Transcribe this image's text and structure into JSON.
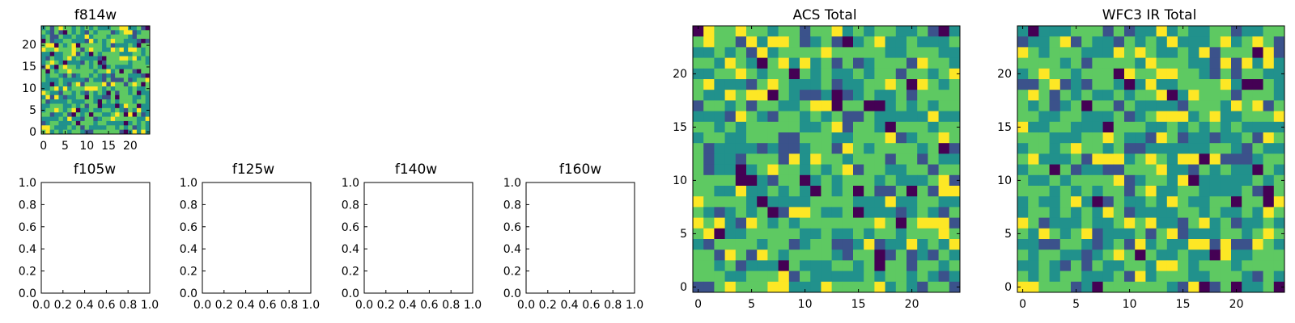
{
  "figure": {
    "background": "#ffffff"
  },
  "colormap": [
    "#440154",
    "#3b528b",
    "#21918c",
    "#5ec962",
    "#fde725"
  ],
  "chart_data": [
    {
      "type": "heatmap",
      "title": "f814w",
      "nx": 25,
      "ny": 25,
      "xlim": [
        -0.5,
        24.5
      ],
      "ylim": [
        -0.5,
        24.5
      ],
      "xticks": [
        0,
        5,
        10,
        15,
        20
      ],
      "yticks": [
        0,
        5,
        10,
        15,
        20
      ],
      "seed": 3,
      "grid": false
    },
    {
      "type": "empty",
      "title": "f105w",
      "xlim": [
        0,
        1
      ],
      "ylim": [
        0,
        1
      ],
      "xticks": [
        "0.0",
        "0.2",
        "0.4",
        "0.6",
        "0.8",
        "1.0"
      ],
      "yticks": [
        "0.0",
        "0.2",
        "0.4",
        "0.6",
        "0.8",
        "1.0"
      ]
    },
    {
      "type": "empty",
      "title": "f125w",
      "xlim": [
        0,
        1
      ],
      "ylim": [
        0,
        1
      ],
      "xticks": [
        "0.0",
        "0.2",
        "0.4",
        "0.6",
        "0.8",
        "1.0"
      ],
      "yticks": [
        "0.0",
        "0.2",
        "0.4",
        "0.6",
        "0.8",
        "1.0"
      ]
    },
    {
      "type": "empty",
      "title": "f140w",
      "xlim": [
        0,
        1
      ],
      "ylim": [
        0,
        1
      ],
      "xticks": [
        "0.0",
        "0.2",
        "0.4",
        "0.6",
        "0.8",
        "1.0"
      ],
      "yticks": [
        "0.0",
        "0.2",
        "0.4",
        "0.6",
        "0.8",
        "1.0"
      ]
    },
    {
      "type": "empty",
      "title": "f160w",
      "xlim": [
        0,
        1
      ],
      "ylim": [
        0,
        1
      ],
      "xticks": [
        "0.0",
        "0.2",
        "0.4",
        "0.6",
        "0.8",
        "1.0"
      ],
      "yticks": [
        "0.0",
        "0.2",
        "0.4",
        "0.6",
        "0.8",
        "1.0"
      ]
    },
    {
      "type": "heatmap",
      "title": "ACS Total",
      "nx": 25,
      "ny": 25,
      "xlim": [
        -0.5,
        24.5
      ],
      "ylim": [
        -0.5,
        24.5
      ],
      "xticks": [
        0,
        5,
        10,
        15,
        20
      ],
      "yticks": [
        0,
        5,
        10,
        15,
        20
      ],
      "seed": 11,
      "grid": false
    },
    {
      "type": "heatmap",
      "title": "WFC3 IR Total",
      "nx": 25,
      "ny": 25,
      "xlim": [
        -0.5,
        24.5
      ],
      "ylim": [
        -0.5,
        24.5
      ],
      "xticks": [
        0,
        5,
        10,
        15,
        20
      ],
      "yticks": [
        0,
        5,
        10,
        15,
        20
      ],
      "seed": 29,
      "grid": false
    }
  ]
}
